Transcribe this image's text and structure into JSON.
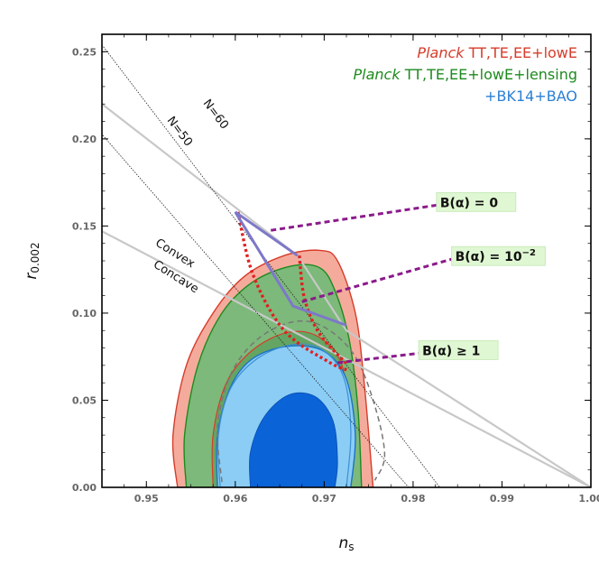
{
  "chart_data": {
    "type": "contour",
    "xlabel_main": "n",
    "xlabel_sub": "s",
    "ylabel_main": "r",
    "ylabel_sub": "0.002",
    "xlim": [
      0.945,
      1.0
    ],
    "ylim": [
      0.0,
      0.26
    ],
    "x_ticks": [
      0.95,
      0.96,
      0.97,
      0.98,
      0.99,
      1.0
    ],
    "x_tick_labels": [
      "0.95",
      "0.96",
      "0.97",
      "0.98",
      "0.99",
      "1.00"
    ],
    "y_ticks": [
      0.0,
      0.05,
      0.1,
      0.15,
      0.2,
      0.25
    ],
    "y_tick_labels": [
      "0.00",
      "0.05",
      "0.10",
      "0.15",
      "0.20",
      "0.25"
    ],
    "legend": [
      {
        "italic": "Planck",
        "rest": " TT,TE,EE+lowE",
        "color": "#d63c2a"
      },
      {
        "italic": "Planck",
        "rest": " TT,TE,EE+lowE+lensing",
        "color": "#1e8a1e"
      },
      {
        "italic": "",
        "rest": "+BK14+BAO",
        "color": "#2a7fd4"
      }
    ],
    "line_labels": {
      "n50": "N=50",
      "n60": "N=60",
      "convex": "Convex",
      "concave": "Concave"
    },
    "annotations": [
      {
        "text": "B(α) = 0",
        "x": 0.9875,
        "y": 0.164
      },
      {
        "text": "B(α) = 10",
        "sup": "−2",
        "x": 0.9892,
        "y": 0.133
      },
      {
        "text": "B(α) ≥ 1",
        "x": 0.9855,
        "y": 0.079
      }
    ],
    "colors": {
      "planck_red": "#f4ab9c",
      "planck_red_edge": "#d63c2a",
      "lensing_green": "#7db97a",
      "lensing_green_edge": "#1e8a1e",
      "bk_blue_outer": "#8ccdf5",
      "bk_blue_inner": "#0a64d8",
      "purple": "#8b1a8b",
      "red_dots": "#e02020",
      "boundary_gray": "#c8c8c8"
    },
    "lines": {
      "convex_concave": [
        [
          0.945,
          0.147
        ],
        [
          1.0,
          0.0
        ]
      ],
      "n60_nearly": [
        [
          0.945,
          0.22
        ],
        [
          0.967,
          0.133
        ],
        [
          0.9725,
          0.09
        ],
        [
          1.0,
          0.0
        ]
      ],
      "n50_dotted": [
        [
          0.9325,
          0.276
        ],
        [
          0.9795,
          0.0
        ]
      ],
      "n60_dotted": [
        [
          0.9435,
          0.264
        ],
        [
          0.983,
          0.0
        ]
      ],
      "inflation_upper": [
        [
          0.96,
          0.158
        ],
        [
          0.967,
          0.133
        ]
      ],
      "inflation_lower": [
        [
          0.96,
          0.158
        ],
        [
          0.9665,
          0.104
        ],
        [
          0.9725,
          0.093
        ]
      ]
    },
    "contours": {
      "planck_95": [
        [
          0.9535,
          0.0
        ],
        [
          0.953,
          0.03
        ],
        [
          0.9545,
          0.07
        ],
        [
          0.9575,
          0.1
        ],
        [
          0.961,
          0.121
        ],
        [
          0.9655,
          0.133
        ],
        [
          0.9695,
          0.136
        ],
        [
          0.9715,
          0.13
        ],
        [
          0.9735,
          0.1
        ],
        [
          0.9745,
          0.06
        ],
        [
          0.9755,
          0.0
        ]
      ],
      "planck_68": [
        [
          0.9575,
          0.0
        ],
        [
          0.9575,
          0.03
        ],
        [
          0.959,
          0.06
        ],
        [
          0.962,
          0.079
        ],
        [
          0.966,
          0.089
        ],
        [
          0.9695,
          0.086
        ],
        [
          0.972,
          0.07
        ],
        [
          0.9728,
          0.035
        ],
        [
          0.9725,
          0.0
        ]
      ],
      "lensing_95": [
        [
          0.9545,
          0.0
        ],
        [
          0.9543,
          0.03
        ],
        [
          0.9558,
          0.07
        ],
        [
          0.9585,
          0.1
        ],
        [
          0.962,
          0.118
        ],
        [
          0.9663,
          0.127
        ],
        [
          0.9695,
          0.126
        ],
        [
          0.9712,
          0.113
        ],
        [
          0.9728,
          0.085
        ],
        [
          0.9738,
          0.045
        ],
        [
          0.9742,
          0.0
        ]
      ],
      "lensing_68": [
        [
          0.9583,
          0.0
        ],
        [
          0.9581,
          0.03
        ],
        [
          0.9595,
          0.057
        ],
        [
          0.9625,
          0.074
        ],
        [
          0.9665,
          0.082
        ],
        [
          0.9698,
          0.079
        ],
        [
          0.9722,
          0.063
        ],
        [
          0.973,
          0.032
        ],
        [
          0.9725,
          0.0
        ]
      ],
      "bk_95": [
        [
          0.958,
          0.0
        ],
        [
          0.958,
          0.03
        ],
        [
          0.9595,
          0.058
        ],
        [
          0.962,
          0.074
        ],
        [
          0.966,
          0.081
        ],
        [
          0.97,
          0.078
        ],
        [
          0.9725,
          0.062
        ],
        [
          0.9735,
          0.03
        ],
        [
          0.973,
          0.0
        ]
      ],
      "bk_68": [
        [
          0.9617,
          0.0
        ],
        [
          0.9617,
          0.02
        ],
        [
          0.9632,
          0.04
        ],
        [
          0.966,
          0.053
        ],
        [
          0.969,
          0.052
        ],
        [
          0.971,
          0.038
        ],
        [
          0.9715,
          0.015
        ],
        [
          0.9712,
          0.0
        ]
      ],
      "gray_dashed": [
        [
          0.9585,
          0.003
        ],
        [
          0.958,
          0.035
        ],
        [
          0.9595,
          0.065
        ],
        [
          0.9625,
          0.085
        ],
        [
          0.9665,
          0.095
        ],
        [
          0.97,
          0.092
        ],
        [
          0.9735,
          0.075
        ],
        [
          0.9758,
          0.045
        ],
        [
          0.9768,
          0.018
        ],
        [
          0.9757,
          0.004
        ]
      ]
    }
  }
}
